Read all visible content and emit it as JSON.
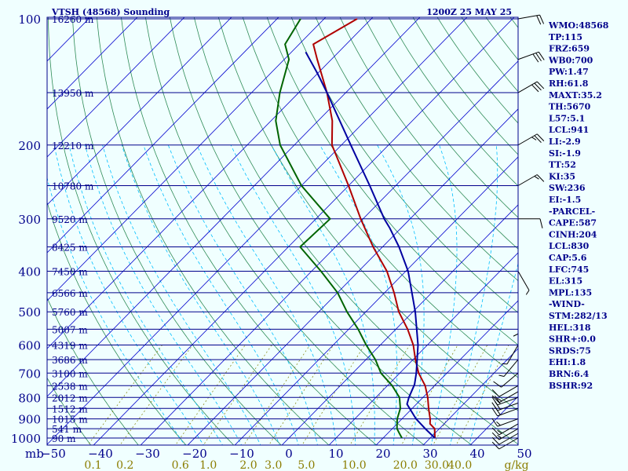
{
  "header": {
    "title": "VTSH (48568) Sounding",
    "datetime": "1200Z 25 MAY 25"
  },
  "colors": {
    "background": "#f0ffff",
    "isobar": "#00008b",
    "isotherm": "#0000cd",
    "dry_adiabat": "#2e8b57",
    "moist_adiabat": "#00bfff",
    "mixing_ratio": "#808000",
    "temperature": "#b00000",
    "dewpoint": "#006400",
    "parcel": "#0000a0",
    "text": "#00008b",
    "mixing_label": "#8b7d00"
  },
  "stats": [
    "WMO:48568",
    "TP:115",
    "FRZ:659",
    "WB0:700",
    "PW:1.47",
    "RH:61.8",
    "MAXT:35.2",
    "TH:5670",
    "L57:5.1",
    "LCL:941",
    "LI:-2.9",
    "SI:-1.9",
    "TT:52",
    "KI:35",
    "SW:236",
    "EI:-1.5",
    "-PARCEL-",
    "CAPE:587",
    "CINH:204",
    "LCL:830",
    "CAP:5.6",
    "LFC:745",
    "EL:315",
    "MPL:135",
    "-WIND-",
    "STM:282/13",
    "HEL:318",
    "SHR+:0.0",
    "SRDS:75",
    "EHI:1.8",
    "BRN:6.4",
    "BSHR:92"
  ],
  "chart_data": {
    "type": "line",
    "title": "VTSH (48568) Sounding",
    "subtitle": "1200Z 25 MAY 25",
    "skew_t": true,
    "ylim": [
      1000,
      100
    ],
    "xlim": [
      -50,
      50
    ],
    "pressure_ticks": [
      100,
      200,
      300,
      400,
      500,
      600,
      700,
      800,
      900,
      1000
    ],
    "temperature_ticks": [
      -50,
      -40,
      -30,
      -20,
      -10,
      0,
      10,
      20,
      30,
      40,
      50
    ],
    "y_axis_unit": "mb",
    "mixing_ratio_ticks": [
      "0.1",
      "0.2",
      "0.6",
      "1.0",
      "2.0",
      "3.0",
      "5.0",
      "10.0",
      "20.0",
      "30.0",
      "40.0"
    ],
    "mixing_ratio_unit": "g/kg",
    "height_labels": [
      {
        "p": 100,
        "label": "16260 m"
      },
      {
        "p": 150,
        "label": "13950 m"
      },
      {
        "p": 200,
        "label": "12210 m"
      },
      {
        "p": 250,
        "label": "10780 m"
      },
      {
        "p": 300,
        "label": "9520 m"
      },
      {
        "p": 350,
        "label": "8425 m"
      },
      {
        "p": 400,
        "label": "7450 m"
      },
      {
        "p": 450,
        "label": "6566 m"
      },
      {
        "p": 500,
        "label": "5760 m"
      },
      {
        "p": 550,
        "label": "5007 m"
      },
      {
        "p": 600,
        "label": "4319 m"
      },
      {
        "p": 650,
        "label": "3686 m"
      },
      {
        "p": 700,
        "label": "3100 m"
      },
      {
        "p": 750,
        "label": "2538 m"
      },
      {
        "p": 800,
        "label": "2012 m"
      },
      {
        "p": 850,
        "label": "1512 m"
      },
      {
        "p": 900,
        "label": "1015 m"
      },
      {
        "p": 950,
        "label": "541 m"
      },
      {
        "p": 1000,
        "label": "90 m"
      }
    ],
    "series": [
      {
        "values": [
          [
            1000,
            31.0
          ],
          [
            950,
            29.0
          ],
          [
            925,
            27.0
          ],
          [
            900,
            26.0
          ],
          [
            850,
            23.5
          ],
          [
            800,
            21.0
          ],
          [
            750,
            18.0
          ],
          [
            700,
            14.0
          ],
          [
            650,
            10.5
          ],
          [
            600,
            7.0
          ],
          [
            550,
            2.5
          ],
          [
            500,
            -3.0
          ],
          [
            450,
            -8.0
          ],
          [
            400,
            -14.0
          ],
          [
            350,
            -22.0
          ],
          [
            300,
            -30.5
          ],
          [
            250,
            -40.0
          ],
          [
            200,
            -52.0
          ],
          [
            175,
            -57.0
          ],
          [
            150,
            -64.0
          ],
          [
            125,
            -73.0
          ],
          [
            115,
            -77.0
          ],
          [
            100,
            -73.0
          ]
        ]
      },
      {
        "values": [
          [
            1000,
            24.0
          ],
          [
            975,
            22.5
          ],
          [
            950,
            21.0
          ],
          [
            925,
            20.0
          ],
          [
            900,
            19.0
          ],
          [
            850,
            17.5
          ],
          [
            800,
            15.0
          ],
          [
            750,
            11.0
          ],
          [
            700,
            6.0
          ],
          [
            650,
            2.0
          ],
          [
            600,
            -3.0
          ],
          [
            550,
            -8.0
          ],
          [
            500,
            -14.0
          ],
          [
            450,
            -20.0
          ],
          [
            400,
            -28.0
          ],
          [
            350,
            -37.5
          ],
          [
            300,
            -37.0
          ],
          [
            250,
            -50.0
          ],
          [
            200,
            -63.0
          ],
          [
            175,
            -69.0
          ],
          [
            150,
            -74.0
          ],
          [
            125,
            -79.0
          ],
          [
            115,
            -83.0
          ],
          [
            100,
            -85.0
          ]
        ]
      },
      {
        "values": [
          [
            1000,
            31.0
          ],
          [
            950,
            27.0
          ],
          [
            900,
            23.0
          ],
          [
            830,
            18.0
          ],
          [
            800,
            17.0
          ],
          [
            745,
            15.5
          ],
          [
            700,
            13.5
          ],
          [
            600,
            8.0
          ],
          [
            500,
            0.5
          ],
          [
            400,
            -9.5
          ],
          [
            350,
            -16.5
          ],
          [
            315,
            -22.5
          ],
          [
            300,
            -25.5
          ],
          [
            250,
            -35.5
          ],
          [
            200,
            -48.0
          ],
          [
            150,
            -64.0
          ],
          [
            135,
            -70.0
          ],
          [
            120,
            -77.0
          ]
        ]
      }
    ],
    "winds": [
      {
        "p": 1000,
        "dir": 240,
        "spd": 10
      },
      {
        "p": 975,
        "dir": 240,
        "spd": 10
      },
      {
        "p": 950,
        "dir": 240,
        "spd": 15
      },
      {
        "p": 925,
        "dir": 240,
        "spd": 15
      },
      {
        "p": 900,
        "dir": 250,
        "spd": 15
      },
      {
        "p": 850,
        "dir": 250,
        "spd": 20
      },
      {
        "p": 825,
        "dir": 250,
        "spd": 20
      },
      {
        "p": 800,
        "dir": 250,
        "spd": 20
      },
      {
        "p": 775,
        "dir": 240,
        "spd": 15
      },
      {
        "p": 750,
        "dir": 240,
        "spd": 10
      },
      {
        "p": 700,
        "dir": 230,
        "spd": 10
      },
      {
        "p": 650,
        "dir": 220,
        "spd": 5
      },
      {
        "p": 600,
        "dir": 210,
        "spd": 5
      },
      {
        "p": 500,
        "dir": 180,
        "spd": 5
      },
      {
        "p": 400,
        "dir": 150,
        "spd": 5
      },
      {
        "p": 300,
        "dir": 90,
        "spd": 10
      },
      {
        "p": 250,
        "dir": 60,
        "spd": 15
      },
      {
        "p": 200,
        "dir": 60,
        "spd": 25
      },
      {
        "p": 150,
        "dir": 60,
        "spd": 30
      },
      {
        "p": 125,
        "dir": 70,
        "spd": 30
      },
      {
        "p": 100,
        "dir": 80,
        "spd": 20
      }
    ]
  }
}
